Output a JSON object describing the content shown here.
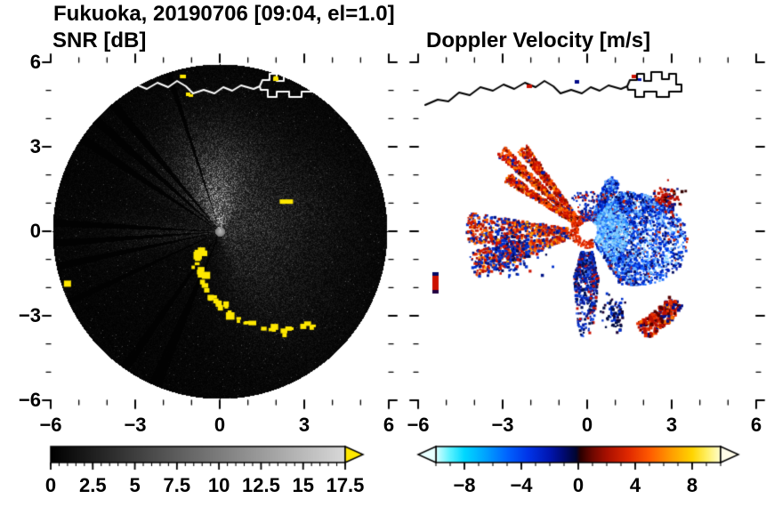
{
  "title": "Fukuoka, 20190706 [09:04, el=1.0]",
  "panels": {
    "left": {
      "title": "SNR [dB]"
    },
    "right": {
      "title": "Doppler Velocity [m/s]"
    }
  },
  "axes": {
    "xtick_labels": [
      "−6",
      "−3",
      "0",
      "3",
      "6"
    ],
    "ytick_labels": [
      "6",
      "3",
      "0",
      "−3",
      "−6"
    ]
  },
  "colorbars": {
    "snr": {
      "tick_labels": [
        "0",
        "2.5",
        "5",
        "7.5",
        "10",
        "12.5",
        "15",
        "17.5"
      ],
      "range": [
        0,
        17.5
      ],
      "over_arrow_color": "#ffe800",
      "stops": [
        {
          "t": 0,
          "c": "#000000"
        },
        {
          "t": 1,
          "c": "#d9d9d9"
        }
      ]
    },
    "velocity": {
      "tick_labels": [
        "−8",
        "−4",
        "0",
        "4",
        "8"
      ],
      "range": [
        -10,
        10
      ],
      "under_arrow_color": "#e8ffff",
      "over_arrow_color": "#fffce8",
      "stops": [
        {
          "t": 0.0,
          "c": "#d8ffff"
        },
        {
          "t": 0.05,
          "c": "#5af2ff"
        },
        {
          "t": 0.1,
          "c": "#00d8ff"
        },
        {
          "t": 0.175,
          "c": "#00a2ff"
        },
        {
          "t": 0.25,
          "c": "#0064ff"
        },
        {
          "t": 0.325,
          "c": "#0034e8"
        },
        {
          "t": 0.4,
          "c": "#0016b0"
        },
        {
          "t": 0.45,
          "c": "#000a70"
        },
        {
          "t": 0.4925,
          "c": "#000530"
        },
        {
          "t": 0.5075,
          "c": "#2b0000"
        },
        {
          "t": 0.55,
          "c": "#6e0800"
        },
        {
          "t": 0.6,
          "c": "#a81000"
        },
        {
          "t": 0.675,
          "c": "#e02800"
        },
        {
          "t": 0.75,
          "c": "#ff5a00"
        },
        {
          "t": 0.825,
          "c": "#ff9c00"
        },
        {
          "t": 0.9,
          "c": "#ffd400"
        },
        {
          "t": 0.95,
          "c": "#ffef60"
        },
        {
          "t": 1.0,
          "c": "#fffdd0"
        }
      ]
    }
  },
  "coast": {
    "main": [
      [
        8,
        48
      ],
      [
        22,
        42
      ],
      [
        34,
        44
      ],
      [
        46,
        34
      ],
      [
        58,
        37
      ],
      [
        70,
        28
      ],
      [
        84,
        32
      ],
      [
        96,
        25
      ],
      [
        108,
        30
      ],
      [
        120,
        23
      ],
      [
        132,
        28
      ],
      [
        142,
        21
      ],
      [
        152,
        27
      ],
      [
        160,
        35
      ],
      [
        172,
        31
      ],
      [
        184,
        35
      ],
      [
        194,
        28
      ],
      [
        204,
        32
      ],
      [
        214,
        26
      ],
      [
        228,
        30
      ],
      [
        235,
        27
      ]
    ],
    "port": [
      [
        235,
        27
      ],
      [
        238,
        20
      ],
      [
        246,
        20
      ],
      [
        246,
        13
      ],
      [
        254,
        13
      ],
      [
        254,
        21
      ],
      [
        262,
        21
      ],
      [
        262,
        11
      ],
      [
        274,
        11
      ],
      [
        274,
        19
      ],
      [
        282,
        19
      ],
      [
        282,
        13
      ],
      [
        290,
        13
      ],
      [
        290,
        25
      ],
      [
        296,
        25
      ],
      [
        296,
        33
      ],
      [
        282,
        33
      ],
      [
        282,
        39
      ],
      [
        268,
        39
      ],
      [
        268,
        33
      ],
      [
        254,
        33
      ],
      [
        254,
        39
      ],
      [
        244,
        39
      ],
      [
        244,
        31
      ],
      [
        236,
        31
      ],
      [
        235,
        27
      ]
    ]
  },
  "chart_data": [
    {
      "type": "heatmap",
      "title": "SNR [dB]",
      "xlabel": "",
      "ylabel": "",
      "xlim": [
        -6,
        6
      ],
      "ylim": [
        -6,
        6
      ],
      "xticks": [
        -6,
        -3,
        0,
        3,
        6
      ],
      "yticks": [
        -6,
        -3,
        0,
        3,
        6
      ],
      "grid": false,
      "legend": "colorbar below",
      "colorbar_range": [
        0,
        17.5
      ],
      "colorbar_ticks": [
        0,
        2.5,
        5,
        7.5,
        10,
        12.5,
        15,
        17.5
      ],
      "colormap": "grayscale 0-17.5 dB, yellow over-range arrow",
      "description": "PPI radar scan, 6 km radius black disc centered on radar at origin (0,0). Diffuse 5-15 dB echo north of radar to ~3 km, weaker gray haze east and southeast, gray arm due west. Narrow black beam-blockage rays toward WNW (three spokes), W and SSW. Strong clutter (>17.5 dB, yellow) in an arc spiraling from ~1 km south of radar out to ~4.5 km SE; isolated yellow clutter at the north coastline (~5.5 km), ENE (~2.5 km) and WSW (~5.5 km). Bright dot at radar site; white coastline with port structures across the top.",
      "render": {
        "radius": 188,
        "base": [
          6,
          14,
          50
        ],
        "lobes": [
          [
            130,
            90,
            -95,
            38
          ],
          [
            45,
            115,
            -15,
            40
          ],
          [
            30,
            130,
            50,
            35
          ],
          [
            25,
            110,
            178,
            14
          ]
        ],
        "dark_rays": [
          [
            -130,
            1.6
          ],
          [
            -138,
            1.6
          ],
          [
            -146,
            1.6
          ],
          [
            168,
            1.3
          ],
          [
            176,
            1.3
          ],
          [
            183,
            1.3
          ],
          [
            113,
            2.2
          ],
          [
            125,
            1.6
          ],
          [
            -108,
            0.9
          ],
          [
            155,
            1.1
          ]
        ],
        "clutter_color": "#ffe800",
        "clutter_arc": {
          "a0": 127,
          "a1": 44,
          "r0": 33,
          "r1": 149,
          "n": 30,
          "jitter": 9
        },
        "clutter_spots": [
          [
            -103.5,
            179,
            6,
            4
          ],
          [
            -102,
            156,
            5,
            3
          ],
          [
            -70,
            184,
            5,
            3
          ],
          [
            161,
            181,
            8,
            7
          ],
          [
            -24,
            82,
            15,
            5
          ]
        ],
        "coast_specks": [
          [
            146,
            14,
            6,
            4
          ],
          [
            152,
            34,
            5,
            4
          ],
          [
            250,
            17,
            6,
            4
          ]
        ]
      }
    },
    {
      "type": "heatmap",
      "title": "Doppler Velocity [m/s]",
      "xlabel": "",
      "ylabel": "",
      "xlim": [
        -6,
        6
      ],
      "ylim": [
        -6,
        6
      ],
      "xticks": [
        -6,
        -3,
        0,
        3,
        6
      ],
      "yticks": [
        -6,
        -3,
        0,
        3,
        6
      ],
      "grid": false,
      "legend": "colorbar below",
      "colorbar_range": [
        -10,
        10
      ],
      "colorbar_ticks": [
        -8,
        -4,
        0,
        4,
        8
      ],
      "colormap": "cyan-blue-near black-dark red-red-orange-yellow-white, out-of-range arrows both ends",
      "description": "Doppler velocity on white background, same radar and coastline as SNR panel. Negative (blue, toward radar) velocities fill an eastern fan to ~3.5 km and a tail running SSE to ~3 km ending in a near-black patch. Positive (red-orange, away) velocities form three narrow rays toward WNW to ~4 km and a WSW arm to ~4 km whose outer end mixes red and blue. Thin red ring hugs the white data hole at the radar. Isolated patches: red/dark blob ~3 km ENE, red hook 4-4.5 km SE, red dash 5.5 km W, red/navy specks on the north coastline (drawn in black).",
      "render": {
        "hole_radius": 9,
        "wedges": [
          {
            "n": 3000,
            "a0": -70,
            "a1": 58,
            "r0": 13,
            "r1": 118,
            "pow": 0.85,
            "extent": [
              40,
              75,
              10,
              50
            ],
            "extent2": [
              68,
              -62,
              22
            ],
            "gaps": [
              [
                -52,
                1.2
              ]
            ],
            "size": [
              1.6,
              3.2
            ],
            "palette": [
              [
                "#6db8ff",
                0.13
              ],
              [
                "#1d6bff",
                0.2
              ],
              [
                "#0038e0",
                0.22
              ],
              [
                "#0019ad",
                0.18
              ],
              [
                "#000a60",
                0.14
              ],
              [
                "#8fd4ff",
                0.07
              ],
              [
                "#cc2200",
                0.06
              ]
            ]
          },
          {
            "n": 450,
            "a0": -55,
            "a1": 50,
            "r0": 12,
            "r1": 46,
            "pow": 1,
            "size": [
              1.6,
              3
            ],
            "palette": [
              [
                "#7ecbff",
                0.45
              ],
              [
                "#3fa8ff",
                0.3
              ],
              [
                "#b8e6ff",
                0.15
              ],
              [
                "#1d6bff",
                0.1
              ]
            ]
          },
          {
            "n": 420,
            "a0": -131,
            "a1": -125,
            "r0": 18,
            "r1": 118,
            "pow": 0.95,
            "size": [
              1.8,
              3.4
            ],
            "palette": [
              [
                "#cc1100",
                0.38
              ],
              [
                "#ff5500",
                0.22
              ],
              [
                "#8c0f00",
                0.18
              ],
              [
                "#ff8800",
                0.1
              ],
              [
                "#001cae",
                0.07
              ],
              [
                "#3c0000",
                0.05
              ]
            ]
          },
          {
            "n": 430,
            "a0": -140,
            "a1": -134,
            "r0": 18,
            "r1": 132,
            "pow": 0.95,
            "size": [
              1.8,
              3.4
            ],
            "palette": [
              [
                "#cc1100",
                0.38
              ],
              [
                "#ff5500",
                0.22
              ],
              [
                "#8c0f00",
                0.18
              ],
              [
                "#ff8800",
                0.1
              ],
              [
                "#001cae",
                0.07
              ],
              [
                "#3c0000",
                0.05
              ]
            ]
          },
          {
            "n": 380,
            "a0": -149,
            "a1": -143,
            "r0": 18,
            "r1": 108,
            "pow": 0.95,
            "size": [
              1.8,
              3.4
            ],
            "palette": [
              [
                "#cc1100",
                0.38
              ],
              [
                "#ff5500",
                0.22
              ],
              [
                "#8c0f00",
                0.18
              ],
              [
                "#ff8800",
                0.1
              ],
              [
                "#001cae",
                0.07
              ],
              [
                "#3c0000",
                0.05
              ]
            ]
          },
          {
            "n": 950,
            "a0": 157,
            "a1": 189,
            "r0": 20,
            "r1": 135,
            "pow": 0.9,
            "gaps": [
              [
                172,
                1.6
              ]
            ],
            "size": [
              1.8,
              3.4
            ],
            "palette": [
              [
                "#d92400",
                0.3
              ],
              [
                "#a80f00",
                0.18
              ],
              [
                "#ff6a00",
                0.14
              ],
              [
                "#0030cc",
                0.18
              ],
              [
                "#001488",
                0.12
              ],
              [
                "#ffa200",
                0.08
              ]
            ]
          },
          {
            "n": 150,
            "a0": 60,
            "a1": 285,
            "r0": 10.5,
            "r1": 19,
            "pow": 1,
            "size": [
              1.6,
              3
            ],
            "palette": [
              [
                "#d92400",
                0.6
              ],
              [
                "#ff4400",
                0.25
              ],
              [
                "#8c0f00",
                0.15
              ]
            ]
          },
          {
            "n": 650,
            "a0": 76,
            "a1": 106,
            "r0": 24,
            "r1": 120,
            "pow": 1.05,
            "extent": [
              50,
              72,
              91,
              9
            ],
            "size": [
              1.8,
              3.2
            ],
            "palette": [
              [
                "#0030cc",
                0.3
              ],
              [
                "#0a1a99",
                0.22
              ],
              [
                "#001055",
                0.2
              ],
              [
                "#3a6cf0",
                0.12
              ],
              [
                "#cc1100",
                0.1
              ],
              [
                "#20003a",
                0.06
              ]
            ]
          },
          {
            "n": 240,
            "a0": 38,
            "a1": 62,
            "r0": 118,
            "r1": 138,
            "pow": 1,
            "size": [
              2.4,
              4.2
            ],
            "palette": [
              [
                "#bb0f00",
                0.4
              ],
              [
                "#e83000",
                0.2
              ],
              [
                "#550000",
                0.18
              ],
              [
                "#000f88",
                0.14
              ],
              [
                "#ff7700",
                0.08
              ]
            ]
          },
          {
            "n": 120,
            "a0": -115,
            "a1": -72,
            "r0": 12,
            "r1": 45,
            "pow": 1,
            "size": [
              1.6,
              2.6
            ],
            "palette": [
              [
                "#0030cc",
                0.4
              ],
              [
                "#cc1100",
                0.3
              ],
              [
                "#001488",
                0.3
              ]
            ]
          }
        ],
        "clusters": [
          {
            "n": 260,
            "x": 102,
            "y": 211,
            "sx": 15,
            "sy": 12,
            "size": [
              2,
              3.6
            ],
            "palette": [
              [
                "#0030cc",
                0.4
              ],
              [
                "#001488",
                0.25
              ],
              [
                "#cc1100",
                0.2
              ],
              [
                "#000a55",
                0.15
              ]
            ]
          },
          {
            "n": 90,
            "x": 221,
            "y": 283,
            "sx": 7,
            "sy": 9,
            "size": [
              2,
              3.4
            ],
            "palette": [
              [
                "#000d44",
                0.5
              ],
              [
                "#1a0033",
                0.3
              ],
              [
                "#0030cc",
                0.2
              ]
            ]
          },
          {
            "n": 90,
            "x": 280,
            "y": 153,
            "sx": 7,
            "sy": 8,
            "size": [
              2,
              3.6
            ],
            "palette": [
              [
                "#bb0f00",
                0.45
              ],
              [
                "#e03000",
                0.2
              ],
              [
                "#001088",
                0.2
              ],
              [
                "#330000",
                0.15
              ]
            ]
          }
        ],
        "dashes": [
          [
            16,
            236,
            7,
            4,
            "#000a66"
          ],
          [
            16,
            240,
            7,
            16,
            "#cc1100"
          ],
          [
            16,
            256,
            7,
            4,
            "#200040"
          ],
          [
            122,
            25,
            6,
            4,
            "#cc1100"
          ],
          [
            176,
            20,
            5,
            4,
            "#000a88"
          ],
          [
            240,
            14,
            5,
            4,
            "#cc1100"
          ],
          [
            247,
            18,
            4,
            3,
            "#0011aa"
          ]
        ]
      }
    }
  ]
}
